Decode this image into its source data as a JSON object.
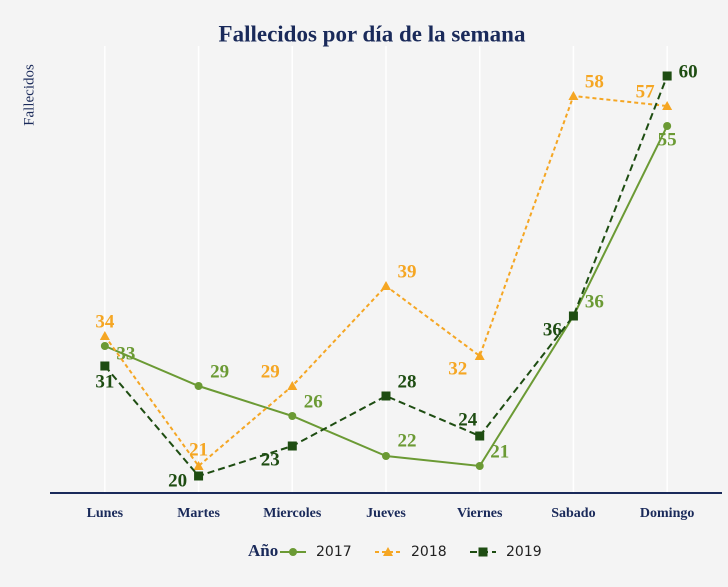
{
  "chart_data": {
    "type": "line",
    "title": "Fallecidos por día de la semana",
    "y_label": "Fallecidos",
    "categories": [
      "Lunes",
      "Martes",
      "Miercoles",
      "Jueves",
      "Viernes",
      "Sabado",
      "Domingo"
    ],
    "legend_title": "Año",
    "series": [
      {
        "name": "2017",
        "color": "#6b9a34",
        "marker": "circle",
        "dash": "solid",
        "values": [
          33,
          29,
          26,
          22,
          21,
          36,
          55
        ]
      },
      {
        "name": "2018",
        "color": "#f5a623",
        "marker": "triangle",
        "dash": "dotted",
        "values": [
          34,
          21,
          29,
          39,
          32,
          58,
          57
        ]
      },
      {
        "name": "2019",
        "color": "#1e4d12",
        "marker": "square",
        "dash": "dashed",
        "values": [
          31,
          20,
          23,
          28,
          24,
          36,
          60
        ]
      }
    ],
    "ylim": [
      18,
      63
    ],
    "grid": true,
    "legend": "bottom"
  }
}
